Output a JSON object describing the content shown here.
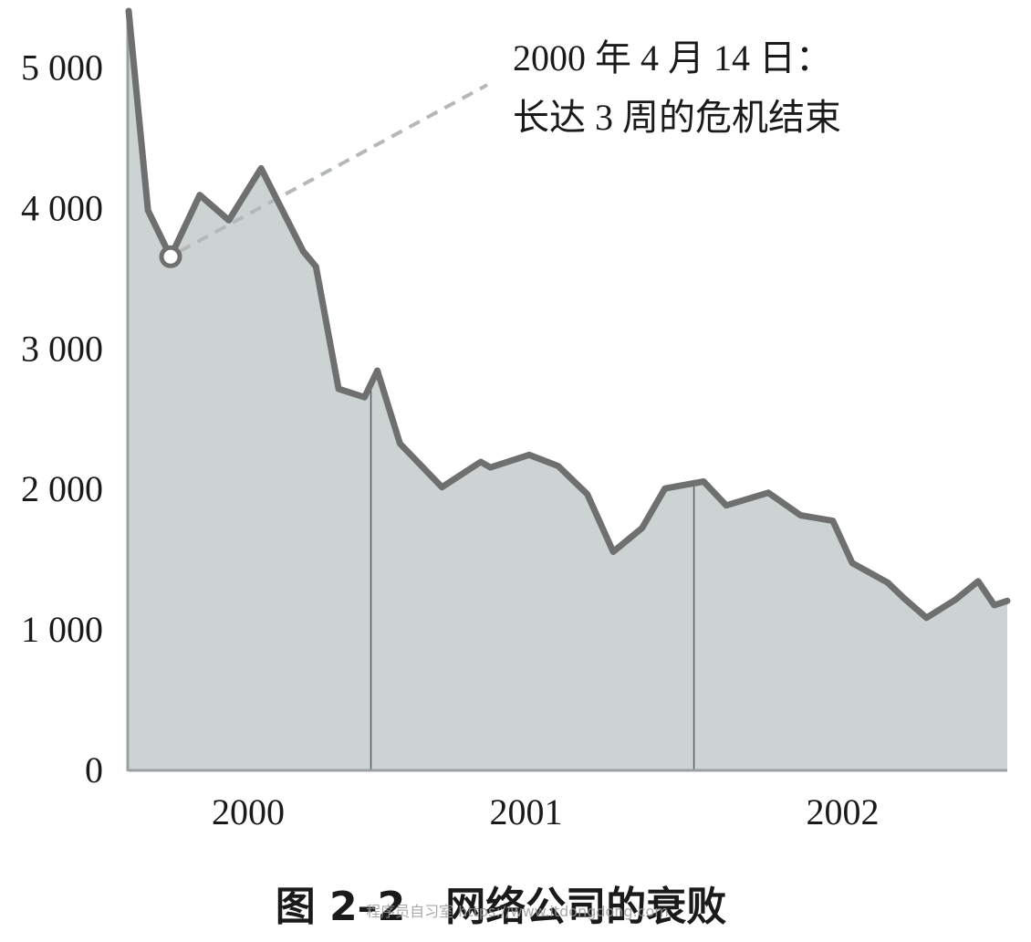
{
  "chart_data": {
    "type": "area",
    "title": "",
    "xlabel": "",
    "ylabel": "",
    "ylim": [
      0,
      5400
    ],
    "yticks": [
      0,
      1000,
      2000,
      3000,
      4000,
      5000
    ],
    "ytick_labels": [
      "0",
      "1 000",
      "2 000",
      "3 000",
      "4 000",
      "5 000"
    ],
    "xlim": [
      2000.0,
      2002.72
    ],
    "year_labels": [
      {
        "x": 2000.37,
        "label": "2000"
      },
      {
        "x": 2001.23,
        "label": "2001"
      },
      {
        "x": 2002.21,
        "label": "2002"
      }
    ],
    "year_dividers": [
      2000.75,
      2001.75
    ],
    "series": [
      {
        "values": [
          [
            2000.0,
            5400
          ],
          [
            2000.06,
            3980
          ],
          [
            2000.13,
            3650
          ],
          [
            2000.22,
            4090
          ],
          [
            2000.31,
            3910
          ],
          [
            2000.41,
            4280
          ],
          [
            2000.54,
            3690
          ],
          [
            2000.58,
            3580
          ],
          [
            2000.65,
            2710
          ],
          [
            2000.73,
            2650
          ],
          [
            2000.77,
            2840
          ],
          [
            2000.84,
            2320
          ],
          [
            2000.97,
            2010
          ],
          [
            2001.09,
            2190
          ],
          [
            2001.12,
            2150
          ],
          [
            2001.24,
            2240
          ],
          [
            2001.33,
            2160
          ],
          [
            2001.42,
            1960
          ],
          [
            2001.5,
            1550
          ],
          [
            2001.59,
            1720
          ],
          [
            2001.66,
            2000
          ],
          [
            2001.78,
            2050
          ],
          [
            2001.85,
            1880
          ],
          [
            2001.98,
            1970
          ],
          [
            2002.08,
            1810
          ],
          [
            2002.18,
            1770
          ],
          [
            2002.24,
            1470
          ],
          [
            2002.35,
            1330
          ],
          [
            2002.4,
            1220
          ],
          [
            2002.47,
            1080
          ],
          [
            2002.56,
            1210
          ],
          [
            2002.63,
            1340
          ],
          [
            2002.68,
            1170
          ],
          [
            2002.72,
            1200
          ]
        ]
      }
    ],
    "highlight_point": [
      2000.13,
      3650
    ],
    "annotation": {
      "line1": "2000 年 4 月 14 日：",
      "line2": "长达 3 周的危机结束"
    },
    "colors": {
      "fill": "#cdd2d2",
      "line": "#6e7070",
      "axis": "#9aa0a0",
      "divider": "#5a5e5e",
      "leader": "#b4b8b8"
    },
    "grid": false,
    "legend": "none"
  },
  "caption": "图 2–2　网络公司的衰败",
  "watermark": "程序员自习室 https://www.itdongdong.com"
}
